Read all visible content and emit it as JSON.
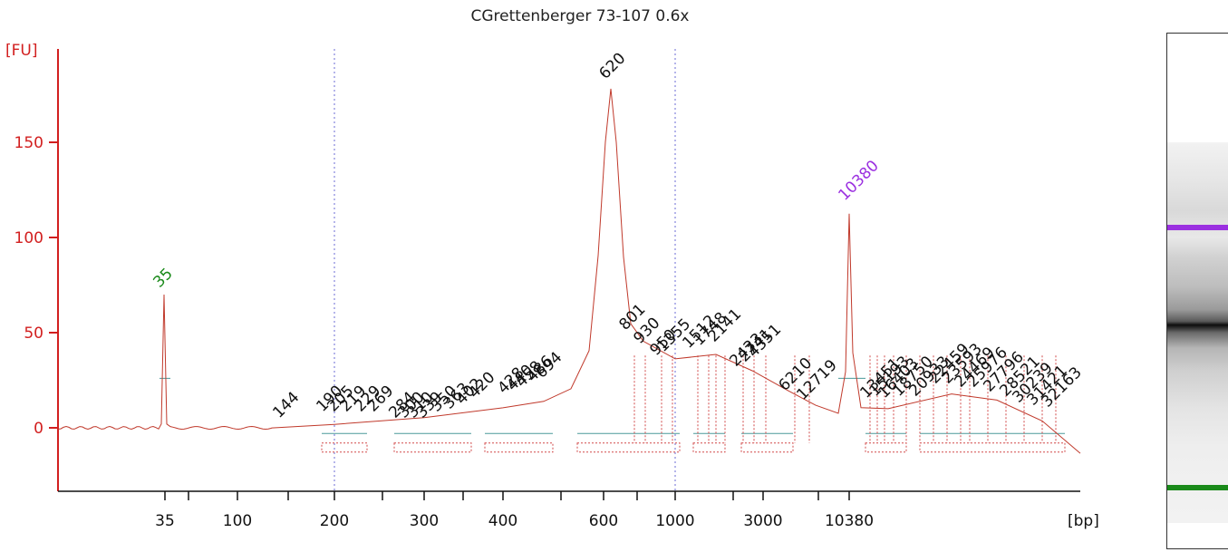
{
  "chart_data": {
    "type": "line",
    "title": "CGrettenberger 73-107 0.6x",
    "ylabel": "[FU]",
    "xlabel": "[bp]",
    "ylim": [
      -30,
      180
    ],
    "y_ticks": [
      0,
      50,
      100,
      150
    ],
    "x_tick_labels": [
      "35",
      "100",
      "200",
      "300",
      "400",
      "600",
      "1000",
      "3000",
      "10380"
    ],
    "x_scale": "ladder (sizing-standard calibrated)",
    "grid": false,
    "ladder_marker_bp": [
      35,
      200,
      1000,
      10380
    ],
    "series": [
      {
        "color": "#d21f1f",
        "bp": [
          35,
          100,
          144,
          200,
          300,
          400,
          486,
          620,
          694,
          801,
          1000,
          1355,
          2141,
          4351,
          6210,
          10380,
          12719,
          18750,
          25976,
          32163
        ],
        "fu": [
          70,
          0,
          2,
          2,
          5,
          8,
          14,
          178,
          50,
          44,
          36,
          37,
          30,
          14,
          8,
          113,
          10,
          18,
          14,
          -12
        ]
      }
    ],
    "peaks": [
      {
        "bp": 35,
        "fu": 70,
        "label": "35",
        "color": "#1a8a1a"
      },
      {
        "bp": 620,
        "fu": 178,
        "label": "620",
        "color": "#111111"
      },
      {
        "bp": 10380,
        "fu": 113,
        "label": "10380",
        "color": "#9b30e0"
      }
    ],
    "annotations": [
      "144",
      "190",
      "205",
      "219",
      "229",
      "269",
      "284",
      "300",
      "310",
      "339",
      "350",
      "363",
      "402",
      "420",
      "428",
      "440",
      "458",
      "486",
      "694",
      "801",
      "930",
      "950",
      "1355",
      "1512",
      "1748",
      "2141",
      "2433",
      "2741",
      "4351",
      "6210",
      "12719",
      "13451",
      "15193",
      "16403",
      "18750",
      "20933",
      "22459",
      "23593",
      "24469",
      "25976",
      "27796",
      "28521",
      "30239",
      "31421",
      "32163"
    ]
  },
  "gel": {
    "upper_marker_color": "#9b30e0",
    "lower_marker_color": "#1a8a1a"
  }
}
